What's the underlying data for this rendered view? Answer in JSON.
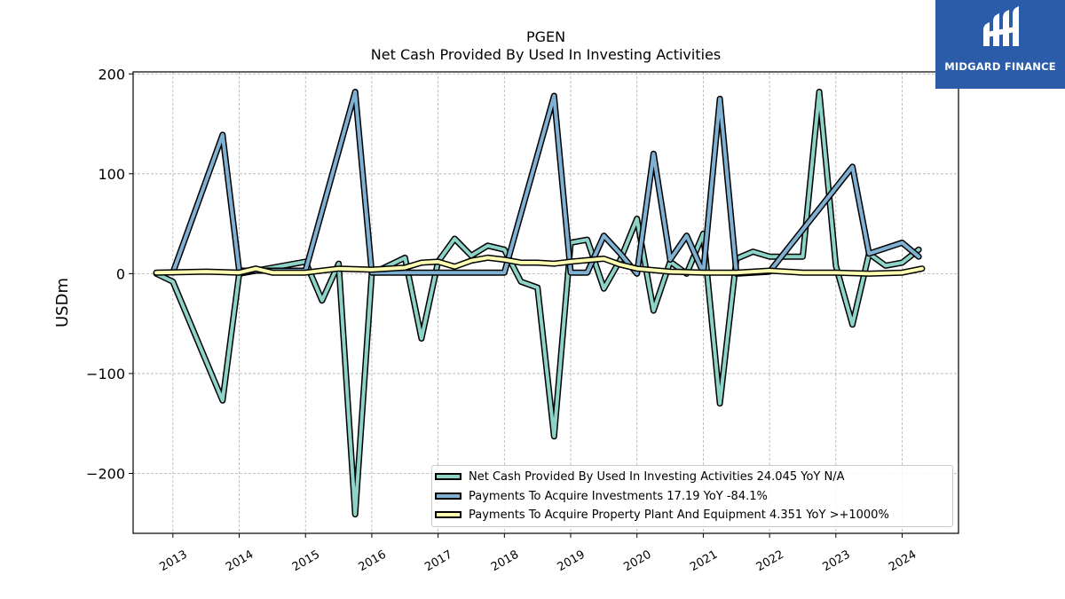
{
  "chart_data": {
    "type": "line",
    "title": "PGEN",
    "subtitle": "Net Cash Provided By Used In Investing Activities",
    "ylabel": "USDm",
    "xlabel": "",
    "ylim": [
      -260,
      202
    ],
    "yticks": [
      200,
      100,
      0,
      -100,
      -200
    ],
    "ytick_labels": [
      "200",
      "100",
      "0",
      "−100",
      "−200"
    ],
    "xlim": [
      2012.4,
      2024.85
    ],
    "xtick_labels": [
      "2013",
      "2014",
      "2015",
      "2016",
      "2017",
      "2018",
      "2019",
      "2020",
      "2021",
      "2022",
      "2023",
      "2024"
    ],
    "grid": true,
    "legend_position": "lower-right",
    "series": [
      {
        "name": "Net Cash Provided By Used In Investing Activities",
        "legend_label": "Net Cash Provided By Used In Investing Activities  24.045 YoY N/A",
        "color": "#8dd3c7",
        "x": [
          2012.75,
          2013.0,
          2013.75,
          2014.0,
          2015.0,
          2015.25,
          2015.5,
          2015.75,
          2016.0,
          2016.5,
          2016.75,
          2017.0,
          2017.25,
          2017.5,
          2017.75,
          2018.0,
          2018.25,
          2018.5,
          2018.75,
          2019.0,
          2019.25,
          2019.5,
          2019.75,
          2020.0,
          2020.25,
          2020.5,
          2020.75,
          2021.0,
          2021.25,
          2021.5,
          2021.75,
          2022.0,
          2022.25,
          2022.5,
          2022.75,
          2023.0,
          2023.25,
          2023.5,
          2023.75,
          2024.0,
          2024.25
        ],
        "values": [
          0,
          -8,
          -127,
          0,
          12,
          -27,
          10,
          -241,
          0,
          16,
          -65,
          12,
          35,
          18,
          28,
          24,
          -8,
          -14,
          -163,
          31,
          34,
          -15,
          14,
          55,
          -37,
          12,
          0,
          40,
          -130,
          15,
          22,
          17,
          17,
          17,
          182,
          8,
          -51,
          20,
          8,
          11,
          24
        ]
      },
      {
        "name": "Payments To Acquire Investments",
        "legend_label": "Payments To Acquire Investments  17.19 YoY -84.1%",
        "color": "#80b1d3",
        "x": [
          2013.0,
          2013.75,
          2014.0,
          2015.0,
          2015.75,
          2016.0,
          2016.5,
          2017.0,
          2018.0,
          2018.75,
          2019.0,
          2019.25,
          2019.5,
          2019.75,
          2020.0,
          2020.25,
          2020.5,
          2020.75,
          2021.0,
          2021.25,
          2021.5,
          2022.0,
          2023.25,
          2023.5,
          2024.0,
          2024.25
        ],
        "values": [
          1,
          139,
          3,
          3,
          182,
          1,
          1,
          1,
          1,
          178,
          1,
          1,
          38,
          20,
          0,
          120,
          14,
          38,
          1,
          175,
          0,
          2,
          107,
          20,
          31,
          17
        ]
      },
      {
        "name": "Payments To Acquire Property Plant And Equipment",
        "legend_label": "Payments To Acquire Property Plant And Equipment  4.351 YoY >+1000%",
        "color": "#ffffb3",
        "x": [
          2012.75,
          2013.5,
          2014.0,
          2014.25,
          2014.5,
          2015.0,
          2015.5,
          2016.0,
          2016.5,
          2016.75,
          2017.0,
          2017.25,
          2017.5,
          2017.75,
          2018.0,
          2018.25,
          2018.5,
          2018.75,
          2019.0,
          2019.5,
          2019.75,
          2020.0,
          2020.5,
          2021.0,
          2021.5,
          2022.0,
          2022.5,
          2023.0,
          2023.5,
          2024.0,
          2024.3
        ],
        "values": [
          1,
          2,
          1,
          5,
          1,
          1,
          5,
          4,
          6,
          11,
          12,
          7,
          13,
          16,
          14,
          11,
          11,
          10,
          12,
          15,
          9,
          5,
          2,
          1,
          1,
          3,
          1,
          1,
          0,
          1,
          5
        ]
      }
    ]
  },
  "logo": {
    "text": "MIDGARD FINANCE"
  }
}
